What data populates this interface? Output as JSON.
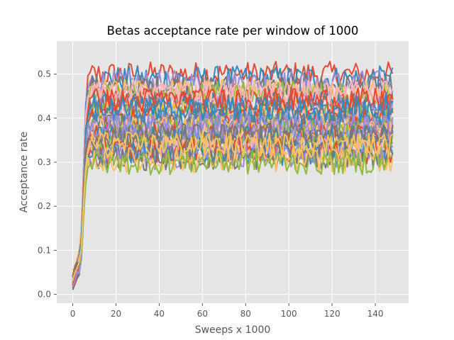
{
  "chart_data": {
    "type": "line",
    "title": "Betas acceptance rate per window of 1000",
    "xlabel": "Sweeps x 1000",
    "ylabel": "Acceptance rate",
    "xlim": [
      -7.4,
      155.4
    ],
    "ylim": [
      -0.02,
      0.575
    ],
    "xticks": [
      0,
      20,
      40,
      60,
      80,
      100,
      120,
      140
    ],
    "yticks": [
      0.0,
      0.1,
      0.2,
      0.3,
      0.4,
      0.5
    ],
    "ytick_labels": [
      "0.0",
      "0.1",
      "0.2",
      "0.3",
      "0.4",
      "0.5"
    ],
    "grid": true,
    "background": "#e5e5e5",
    "x_range_of_series": [
      0,
      148
    ],
    "series_count": 40,
    "colors": [
      "#E24A33",
      "#348ABD",
      "#988ED5",
      "#777777",
      "#FBC15E",
      "#8EBA42",
      "#FFB5B8"
    ],
    "series_levels": [
      0.5,
      0.49,
      0.48,
      0.47,
      0.46,
      0.455,
      0.45,
      0.44,
      0.43,
      0.425,
      0.42,
      0.41,
      0.405,
      0.4,
      0.395,
      0.39,
      0.385,
      0.38,
      0.375,
      0.37,
      0.365,
      0.36,
      0.355,
      0.35,
      0.345,
      0.34,
      0.335,
      0.33,
      0.325,
      0.32,
      0.315,
      0.31,
      0.305,
      0.3,
      0.46,
      0.44,
      0.42,
      0.38,
      0.36,
      0.34
    ],
    "series_start": [
      0.03,
      0.02,
      0.04,
      0.01,
      0.05,
      0.02,
      0.03,
      0.015,
      0.04,
      0.025,
      0.02,
      0.03,
      0.035,
      0.02,
      0.045,
      0.01,
      0.03,
      0.02,
      0.04,
      0.025,
      0.015,
      0.035,
      0.02,
      0.03,
      0.04,
      0.02,
      0.03,
      0.025,
      0.01,
      0.03,
      0.02,
      0.04,
      0.03,
      0.02,
      0.03,
      0.025,
      0.035,
      0.02,
      0.04,
      0.03
    ],
    "series_noise": 0.018
  }
}
